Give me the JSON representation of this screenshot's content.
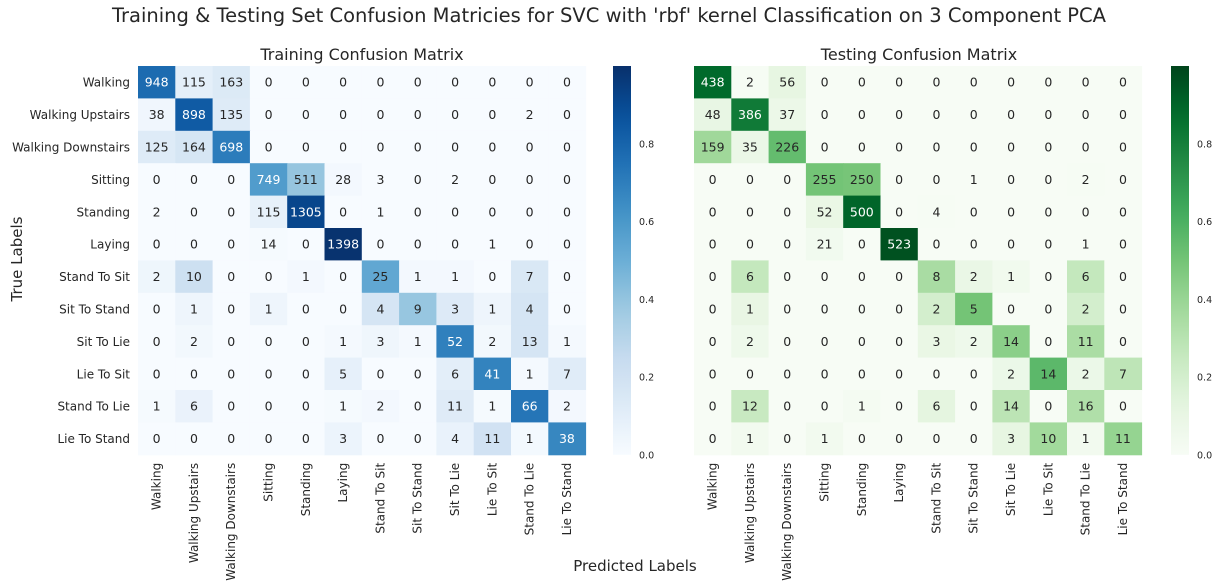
{
  "figure": {
    "suptitle": "Training & Testing Set Confusion Matricies for SVC with 'rbf' kernel Classification on 3 Component PCA",
    "xlabel": "Predicted Labels",
    "ylabel": "True Labels"
  },
  "chart_data": [
    {
      "type": "heatmap",
      "title": "Training Confusion Matrix",
      "colormap": "Blues",
      "colorbar_ticks": [
        "0.0",
        "0.2",
        "0.4",
        "0.6",
        "0.8"
      ],
      "colorbar_range": [
        0,
        1
      ],
      "row_labels": [
        "Walking",
        "Walking Upstairs",
        "Walking Downstairs",
        "Sitting",
        "Standing",
        "Laying",
        "Stand To Sit",
        "Sit To Stand",
        "Sit To Lie",
        "Lie To Sit",
        "Stand To Lie",
        "Lie To Stand"
      ],
      "col_labels": [
        "Walking",
        "Walking Upstairs",
        "Walking Downstairs",
        "Sitting",
        "Standing",
        "Laying",
        "Stand To Sit",
        "Sit To Stand",
        "Sit To Lie",
        "Lie To Sit",
        "Stand To Lie",
        "Lie To Stand"
      ],
      "values": [
        [
          948,
          115,
          163,
          0,
          0,
          0,
          0,
          0,
          0,
          0,
          0,
          0
        ],
        [
          38,
          898,
          135,
          0,
          0,
          0,
          0,
          0,
          0,
          0,
          2,
          0
        ],
        [
          125,
          164,
          698,
          0,
          0,
          0,
          0,
          0,
          0,
          0,
          0,
          0
        ],
        [
          0,
          0,
          0,
          749,
          511,
          28,
          3,
          0,
          2,
          0,
          0,
          0
        ],
        [
          2,
          0,
          0,
          115,
          1305,
          0,
          1,
          0,
          0,
          0,
          0,
          0
        ],
        [
          0,
          0,
          0,
          14,
          0,
          1398,
          0,
          0,
          0,
          1,
          0,
          0
        ],
        [
          2,
          10,
          0,
          0,
          1,
          0,
          25,
          1,
          1,
          0,
          7,
          0
        ],
        [
          0,
          1,
          0,
          1,
          0,
          0,
          4,
          9,
          3,
          1,
          4,
          0
        ],
        [
          0,
          2,
          0,
          0,
          0,
          1,
          3,
          1,
          52,
          2,
          13,
          1
        ],
        [
          0,
          0,
          0,
          0,
          0,
          5,
          0,
          0,
          6,
          41,
          1,
          7
        ],
        [
          1,
          6,
          0,
          0,
          0,
          1,
          2,
          0,
          11,
          1,
          66,
          2
        ],
        [
          0,
          0,
          0,
          0,
          0,
          3,
          0,
          0,
          4,
          11,
          1,
          38
        ]
      ]
    },
    {
      "type": "heatmap",
      "title": "Testing Confusion Matrix",
      "colormap": "Greens",
      "colorbar_ticks": [
        "0.0",
        "0.2",
        "0.4",
        "0.6",
        "0.8"
      ],
      "colorbar_range": [
        0,
        1
      ],
      "row_labels": [
        "Walking",
        "Walking Upstairs",
        "Walking Downstairs",
        "Sitting",
        "Standing",
        "Laying",
        "Stand To Sit",
        "Sit To Stand",
        "Sit To Lie",
        "Lie To Sit",
        "Stand To Lie",
        "Lie To Stand"
      ],
      "col_labels": [
        "Walking",
        "Walking Upstairs",
        "Walking Downstairs",
        "Sitting",
        "Standing",
        "Laying",
        "Stand To Sit",
        "Sit To Stand",
        "Sit To Lie",
        "Lie To Sit",
        "Stand To Lie",
        "Lie To Stand"
      ],
      "values": [
        [
          438,
          2,
          56,
          0,
          0,
          0,
          0,
          0,
          0,
          0,
          0,
          0
        ],
        [
          48,
          386,
          37,
          0,
          0,
          0,
          0,
          0,
          0,
          0,
          0,
          0
        ],
        [
          159,
          35,
          226,
          0,
          0,
          0,
          0,
          0,
          0,
          0,
          0,
          0
        ],
        [
          0,
          0,
          0,
          255,
          250,
          0,
          0,
          1,
          0,
          0,
          2,
          0
        ],
        [
          0,
          0,
          0,
          52,
          500,
          0,
          4,
          0,
          0,
          0,
          0,
          0
        ],
        [
          0,
          0,
          0,
          21,
          0,
          523,
          0,
          0,
          0,
          0,
          1,
          0
        ],
        [
          0,
          6,
          0,
          0,
          0,
          0,
          8,
          2,
          1,
          0,
          6,
          0
        ],
        [
          0,
          1,
          0,
          0,
          0,
          0,
          2,
          5,
          0,
          0,
          2,
          0
        ],
        [
          0,
          2,
          0,
          0,
          0,
          0,
          3,
          2,
          14,
          0,
          11,
          0
        ],
        [
          0,
          0,
          0,
          0,
          0,
          0,
          0,
          0,
          2,
          14,
          2,
          7
        ],
        [
          0,
          12,
          0,
          0,
          1,
          0,
          6,
          0,
          14,
          0,
          16,
          0
        ],
        [
          0,
          1,
          0,
          1,
          0,
          0,
          0,
          0,
          3,
          10,
          1,
          11
        ]
      ]
    }
  ]
}
